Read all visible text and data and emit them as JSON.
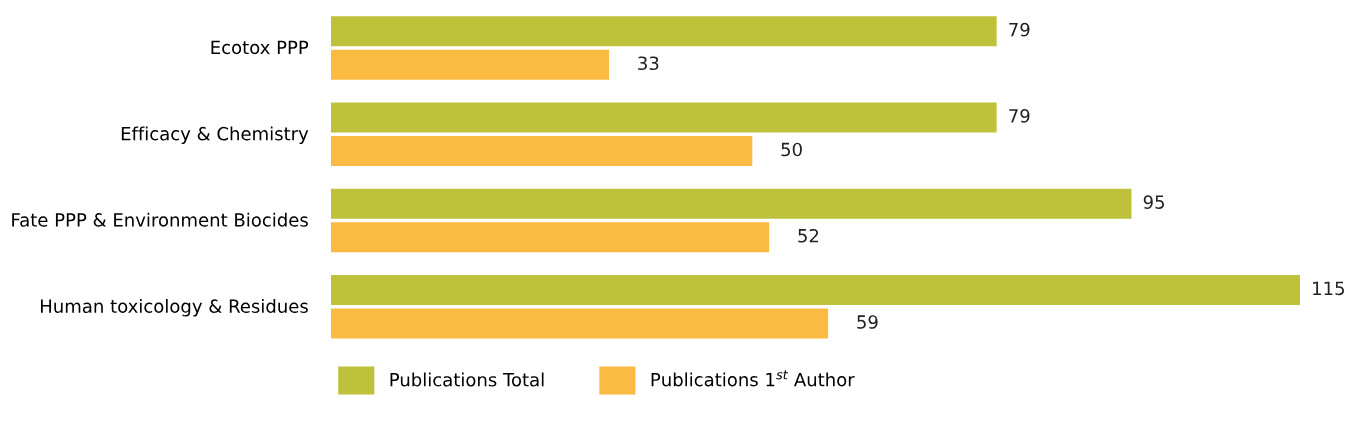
{
  "chart_data": {
    "type": "bar",
    "orientation": "horizontal",
    "categories": [
      "Ecotox PPP",
      "Efficacy & Chemistry",
      "Fate PPP & Environment Biocides",
      "Human toxicology & Residues"
    ],
    "series": [
      {
        "name": "Publications Total",
        "color": "#bec23a",
        "values": [
          79,
          79,
          95,
          115
        ]
      },
      {
        "name": "Publications 1$^{st}$ Author",
        "color": "#fbbb43",
        "values": [
          33,
          50,
          52,
          59
        ]
      }
    ],
    "data_labels": true,
    "legend": "bottom",
    "grid": false
  }
}
